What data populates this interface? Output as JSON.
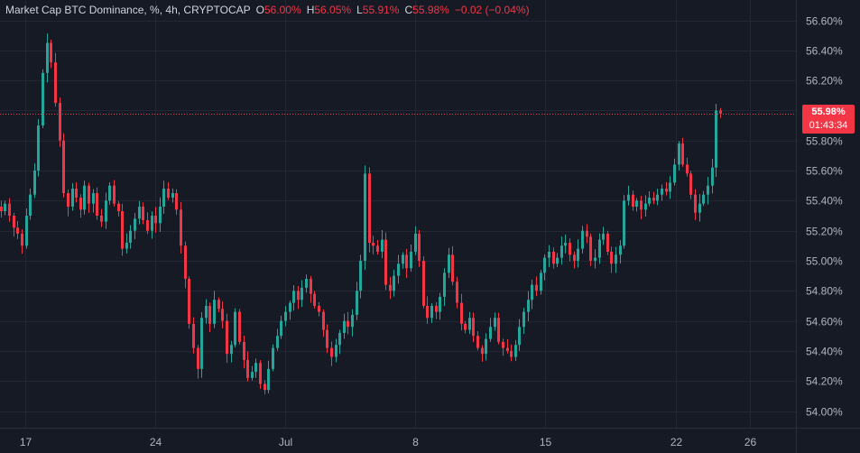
{
  "header": {
    "title": "Market Cap BTC Dominance, %, 4h, CRYPTOCAP",
    "open_label": "O",
    "open_value": "56.00%",
    "high_label": "H",
    "high_value": "56.05%",
    "low_label": "L",
    "low_value": "55.91%",
    "close_label": "C",
    "close_value": "55.98%",
    "change": "−0.02 (−0.04%)"
  },
  "price_badge": {
    "price": "55.98%",
    "countdown": "01:43:34"
  },
  "colors": {
    "background": "#161a25",
    "grid": "#232733",
    "up": "#26a69a",
    "down": "#f23645",
    "text": "#b2b5be"
  },
  "chart_data": {
    "type": "candlestick",
    "y_axis_labels": [
      "56.60%",
      "56.40%",
      "56.20%",
      "56.00%",
      "55.80%",
      "55.60%",
      "55.40%",
      "55.20%",
      "55.00%",
      "54.80%",
      "54.60%",
      "54.40%",
      "54.20%",
      "54.00%"
    ],
    "y_axis_values": [
      56.6,
      56.4,
      56.2,
      56.0,
      55.8,
      55.6,
      55.4,
      55.2,
      55.0,
      54.8,
      54.6,
      54.4,
      54.2,
      54.0
    ],
    "ylim": [
      53.95,
      56.68
    ],
    "x_axis_labels": [
      "17",
      "24",
      "Jul",
      "8",
      "15",
      "22",
      "26"
    ],
    "x_tick_days": [
      0,
      7,
      14,
      21,
      28,
      35,
      39
    ],
    "last_price": 55.98,
    "close_series": [
      55.33,
      55.38,
      55.3,
      55.22,
      55.18,
      55.1,
      55.3,
      55.44,
      55.6,
      55.9,
      56.25,
      56.45,
      56.32,
      56.05,
      55.8,
      55.45,
      55.36,
      55.48,
      55.42,
      55.34,
      55.5,
      55.38,
      55.45,
      55.3,
      55.26,
      55.4,
      55.5,
      55.38,
      55.33,
      55.08,
      55.12,
      55.2,
      55.28,
      55.36,
      55.27,
      55.2,
      55.3,
      55.25,
      55.36,
      55.48,
      55.42,
      55.45,
      55.34,
      55.1,
      54.88,
      54.58,
      54.42,
      54.28,
      54.62,
      54.7,
      54.58,
      54.74,
      54.68,
      54.6,
      54.38,
      54.44,
      54.66,
      54.46,
      54.34,
      54.22,
      54.26,
      54.32,
      54.18,
      54.14,
      54.28,
      54.42,
      54.5,
      54.6,
      54.66,
      54.72,
      54.8,
      54.74,
      54.82,
      54.88,
      54.78,
      54.7,
      54.66,
      54.54,
      54.42,
      54.36,
      54.44,
      54.52,
      54.6,
      54.56,
      54.64,
      54.8,
      55.0,
      55.58,
      55.12,
      55.1,
      55.06,
      55.14,
      54.84,
      54.8,
      54.9,
      54.98,
      55.04,
      54.95,
      55.06,
      55.18,
      55.0,
      54.7,
      54.62,
      54.7,
      54.66,
      54.76,
      54.92,
      55.04,
      54.86,
      54.72,
      54.58,
      54.54,
      54.62,
      54.5,
      54.42,
      54.38,
      54.48,
      54.56,
      54.62,
      54.46,
      54.42,
      54.4,
      54.36,
      54.44,
      54.56,
      54.66,
      54.74,
      54.84,
      54.8,
      54.92,
      55.02,
      55.06,
      54.98,
      55.02,
      55.1,
      55.12,
      55.04,
      55.0,
      55.08,
      55.2,
      55.16,
      55.0,
      55.02,
      55.14,
      55.18,
      55.06,
      54.98,
      55.04,
      55.1,
      55.4,
      55.44,
      55.36,
      55.4,
      55.34,
      55.38,
      55.42,
      55.4,
      55.44,
      55.48,
      55.46,
      55.52,
      55.64,
      55.78,
      55.64,
      55.58,
      55.44,
      55.32,
      55.38,
      55.44,
      55.5,
      55.62,
      56.0,
      55.98
    ]
  }
}
